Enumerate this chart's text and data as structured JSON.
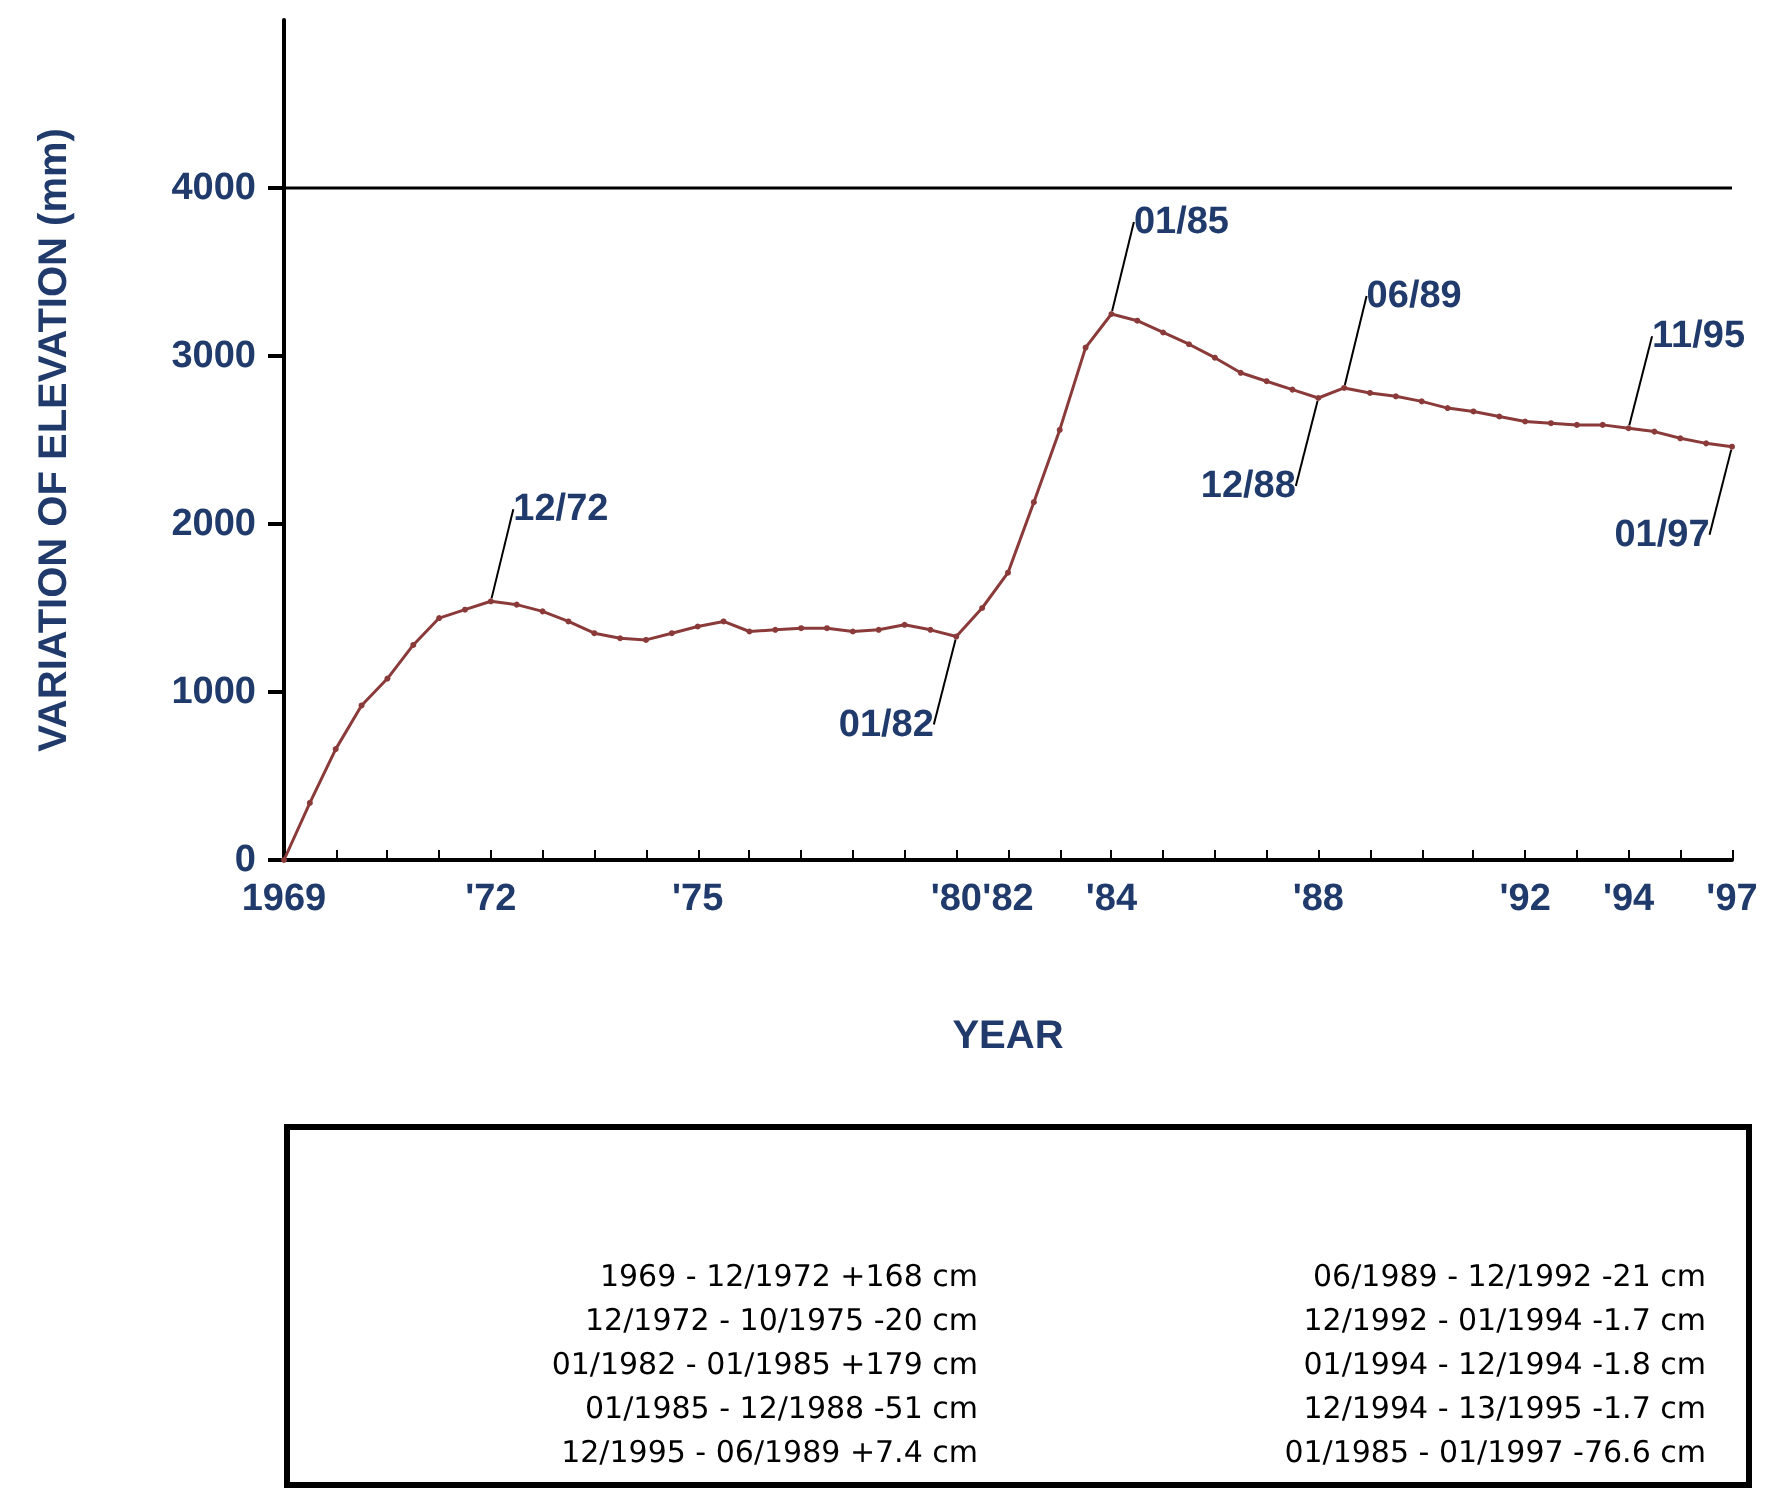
{
  "chart_data": {
    "type": "line",
    "xlabel": "YEAR",
    "ylabel": "VARIATION OF ELEVATION (mm)",
    "categories": [
      "1969",
      null,
      null,
      null,
      null,
      null,
      null,
      null,
      "'72",
      null,
      null,
      null,
      null,
      null,
      null,
      null,
      "'75",
      null,
      null,
      null,
      null,
      null,
      null,
      null,
      null,
      null,
      "'80",
      null,
      "'82",
      null,
      null,
      null,
      "'84",
      null,
      null,
      null,
      null,
      null,
      null,
      null,
      "'88",
      null,
      null,
      null,
      null,
      null,
      null,
      null,
      "'92",
      null,
      null,
      null,
      "'94",
      null,
      null,
      null,
      "'97"
    ],
    "series": [
      {
        "color": "#8b3a3a",
        "values": [
          0,
          340,
          660,
          920,
          1080,
          1280,
          1440,
          1490,
          1540,
          1520,
          1480,
          1420,
          1350,
          1320,
          1310,
          1350,
          1390,
          1420,
          1360,
          1370,
          1380,
          1380,
          1360,
          1370,
          1400,
          1370,
          1330,
          1500,
          1710,
          2130,
          2560,
          3050,
          3250,
          3210,
          3140,
          3070,
          2990,
          2900,
          2850,
          2800,
          2750,
          2810,
          2780,
          2760,
          2730,
          2690,
          2670,
          2640,
          2610,
          2600,
          2590,
          2590,
          2570,
          2550,
          2510,
          2480,
          2460
        ],
        "value_labels": [
          null,
          null,
          null,
          null,
          null,
          null,
          null,
          null,
          "12/72",
          null,
          null,
          null,
          null,
          null,
          null,
          null,
          null,
          null,
          null,
          null,
          null,
          null,
          null,
          null,
          null,
          null,
          "01/82",
          null,
          null,
          null,
          null,
          null,
          "01/85",
          null,
          null,
          null,
          null,
          null,
          null,
          null,
          "12/88",
          "06/89",
          null,
          null,
          null,
          null,
          null,
          null,
          null,
          null,
          null,
          null,
          "11/95",
          null,
          null,
          null,
          "01/97"
        ]
      }
    ],
    "ylim": [
      0,
      5000
    ],
    "yticks": [
      0,
      1000,
      2000,
      3000,
      4000
    ],
    "ref_lines": [
      {
        "axis": "y",
        "value": 4000,
        "color": "#000000"
      }
    ],
    "marker": "circle",
    "line_style": "solid",
    "grid": false,
    "annotations": [
      "1969 - 12/1972 +168 cm",
      "06/1989 - 12/1992 -21 cm",
      "12/1972 - 10/1975 -20 cm",
      "12/1992 - 01/1994 -1.7 cm",
      "01/1982 - 01/1985 +179 cm",
      "01/1994 - 12/1994 -1.8 cm",
      "01/1985 - 12/1988 -51 cm",
      "12/1994 - 13/1995 -1.7 cm",
      "12/1995 - 06/1989 +7.4 cm",
      "01/1985 - 01/1997 -76.6 cm"
    ]
  }
}
